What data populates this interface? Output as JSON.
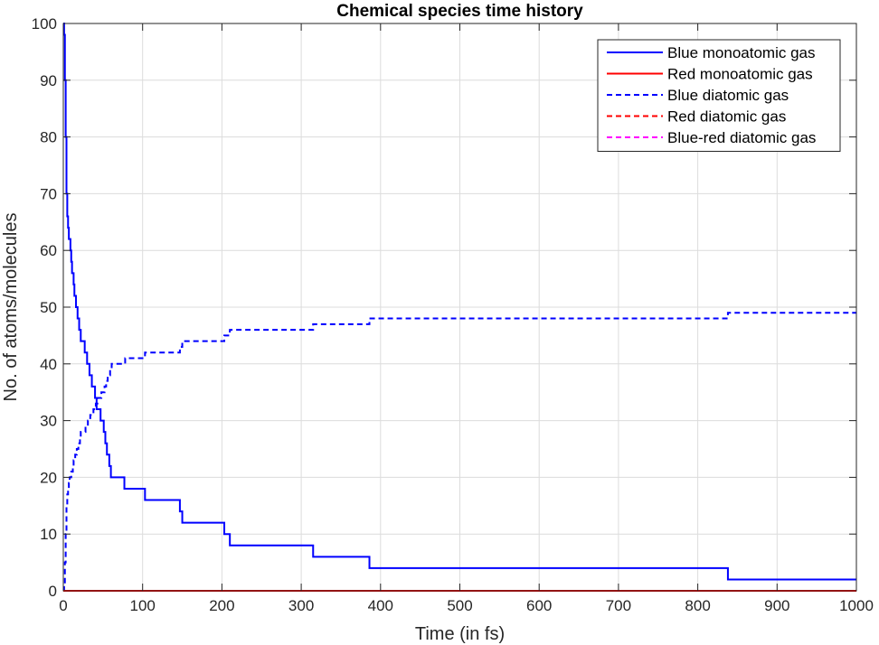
{
  "chart_data": {
    "type": "line",
    "title": "Chemical species time history",
    "xlabel": "Time (in fs)",
    "ylabel": "No. of atoms/molecules",
    "xlim": [
      0,
      1000
    ],
    "ylim": [
      0,
      100
    ],
    "xticks": [
      0,
      100,
      200,
      300,
      400,
      500,
      600,
      700,
      800,
      900,
      1000
    ],
    "yticks": [
      0,
      10,
      20,
      30,
      40,
      50,
      60,
      70,
      80,
      90,
      100
    ],
    "grid": true,
    "legend_position": "top-right",
    "series": [
      {
        "name": "Blue monoatomic gas",
        "color": "#0000ff",
        "style": "solid",
        "step": true,
        "points": [
          [
            0,
            100
          ],
          [
            1,
            98
          ],
          [
            2,
            90
          ],
          [
            3,
            80
          ],
          [
            4,
            70
          ],
          [
            5,
            66
          ],
          [
            6,
            64
          ],
          [
            7,
            62
          ],
          [
            9,
            60
          ],
          [
            10,
            58
          ],
          [
            11,
            56
          ],
          [
            13,
            54
          ],
          [
            14,
            52
          ],
          [
            16,
            50
          ],
          [
            18,
            48
          ],
          [
            20,
            46
          ],
          [
            22,
            44
          ],
          [
            27,
            42
          ],
          [
            30,
            40
          ],
          [
            33,
            38
          ],
          [
            36,
            36
          ],
          [
            40,
            34
          ],
          [
            42,
            32
          ],
          [
            47,
            30
          ],
          [
            51,
            28
          ],
          [
            53,
            26
          ],
          [
            55,
            24
          ],
          [
            58,
            22
          ],
          [
            60,
            20
          ],
          [
            77,
            18
          ],
          [
            103,
            16
          ],
          [
            147,
            14
          ],
          [
            150,
            12
          ],
          [
            203,
            10
          ],
          [
            210,
            8
          ],
          [
            315,
            6
          ],
          [
            386,
            4
          ],
          [
            838,
            2
          ],
          [
            1000,
            2
          ]
        ]
      },
      {
        "name": "Red monoatomic gas",
        "color": "#ff0000",
        "style": "solid",
        "step": false,
        "points": [
          [
            0,
            0
          ],
          [
            1000,
            0
          ]
        ]
      },
      {
        "name": "Blue diatomic gas",
        "color": "#0000ff",
        "style": "dashed",
        "step": true,
        "points": [
          [
            0,
            0
          ],
          [
            1,
            1
          ],
          [
            2,
            5
          ],
          [
            3,
            10
          ],
          [
            4,
            15
          ],
          [
            5,
            17
          ],
          [
            6,
            18
          ],
          [
            7,
            19
          ],
          [
            8,
            20
          ],
          [
            10,
            21
          ],
          [
            12,
            22
          ],
          [
            13,
            23
          ],
          [
            15,
            24
          ],
          [
            17,
            25
          ],
          [
            19,
            26
          ],
          [
            21,
            27
          ],
          [
            22,
            28
          ],
          [
            28,
            29
          ],
          [
            31,
            30
          ],
          [
            34,
            31
          ],
          [
            38,
            32
          ],
          [
            41,
            33
          ],
          [
            43,
            34
          ],
          [
            48,
            35
          ],
          [
            52,
            36
          ],
          [
            54,
            37
          ],
          [
            56,
            38
          ],
          [
            59,
            39
          ],
          [
            61,
            40
          ],
          [
            78,
            41
          ],
          [
            103,
            42
          ],
          [
            147,
            43
          ],
          [
            150,
            44
          ],
          [
            203,
            45
          ],
          [
            210,
            46
          ],
          [
            315,
            47
          ],
          [
            386,
            48
          ],
          [
            838,
            49
          ],
          [
            1000,
            49
          ]
        ]
      },
      {
        "name": "Red diatomic gas",
        "color": "#ff0000",
        "style": "dashed",
        "step": false,
        "points": [
          [
            0,
            0
          ],
          [
            1000,
            0
          ]
        ]
      },
      {
        "name": "Blue-red diatomic gas",
        "color": "#ff00ff",
        "style": "dashed",
        "step": false,
        "points": [
          [
            0,
            0
          ],
          [
            1000,
            0
          ]
        ]
      }
    ]
  }
}
